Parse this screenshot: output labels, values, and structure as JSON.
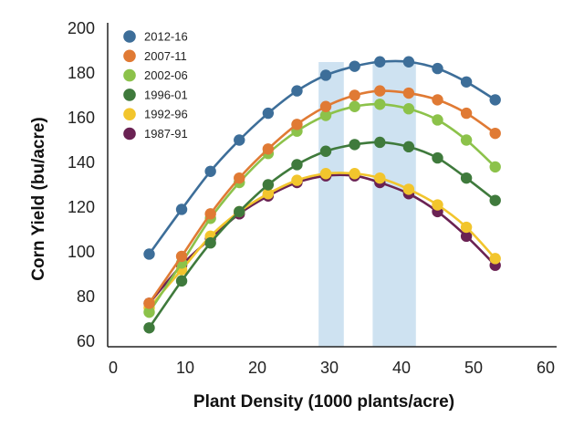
{
  "chart_data": {
    "type": "line",
    "title": "",
    "xlabel": "Plant Density (1000 plants/acre)",
    "ylabel": "Corn Yield (bu/acre)",
    "xlim": [
      0,
      60
    ],
    "ylim": [
      60,
      200
    ],
    "xticks": [
      0,
      10,
      20,
      30,
      40,
      50,
      60
    ],
    "yticks": [
      60,
      80,
      100,
      120,
      140,
      160,
      180,
      200
    ],
    "grid": false,
    "legend_position": "top-left",
    "highlight_bands": [
      {
        "from": 28.5,
        "to": 32,
        "color": "#c9dff0"
      },
      {
        "from": 36,
        "to": 42,
        "color": "#c9dff0"
      }
    ],
    "series": [
      {
        "name": "2012-16",
        "color": "#3d6e99",
        "x": [
          5,
          9.5,
          13.5,
          17.5,
          21.5,
          25.5,
          29.5,
          33.5,
          37,
          41,
          45,
          49,
          53
        ],
        "y": [
          99,
          119,
          136,
          150,
          162,
          172,
          179,
          183,
          185,
          185,
          182,
          176,
          168
        ]
      },
      {
        "name": "2007-11",
        "color": "#e07a34",
        "x": [
          5,
          9.5,
          13.5,
          17.5,
          21.5,
          25.5,
          29.5,
          33.5,
          37,
          41,
          45,
          49,
          53
        ],
        "y": [
          77,
          98,
          117,
          133,
          146,
          157,
          165,
          170,
          172,
          171,
          168,
          162,
          153
        ]
      },
      {
        "name": "2002-06",
        "color": "#8cc24a",
        "x": [
          5,
          9.5,
          13.5,
          17.5,
          21.5,
          25.5,
          29.5,
          33.5,
          37,
          41,
          45,
          49,
          53
        ],
        "y": [
          73,
          95,
          115,
          131,
          144,
          154,
          161,
          165,
          166,
          164,
          159,
          150,
          138
        ]
      },
      {
        "name": "1996-01",
        "color": "#3f7a3c",
        "x": [
          5,
          9.5,
          13.5,
          17.5,
          21.5,
          25.5,
          29.5,
          33.5,
          37,
          41,
          45,
          49,
          53
        ],
        "y": [
          66,
          87,
          104,
          118,
          130,
          139,
          145,
          148,
          149,
          147,
          142,
          133,
          123
        ]
      },
      {
        "name": "1992-96",
        "color": "#f2c52d",
        "x": [
          5,
          9.5,
          13.5,
          17.5,
          21.5,
          25.5,
          29.5,
          33.5,
          37,
          41,
          45,
          49,
          53
        ],
        "y": [
          75,
          92,
          107,
          118,
          126,
          132,
          135,
          135,
          133,
          128,
          121,
          111,
          97
        ]
      },
      {
        "name": "1987-91",
        "color": "#6a2253",
        "x": [
          5,
          9.5,
          13.5,
          17.5,
          21.5,
          25.5,
          29.5,
          33.5,
          37,
          41,
          45,
          49,
          53
        ],
        "y": [
          77,
          94,
          106,
          117,
          125,
          131,
          134,
          134,
          131,
          126,
          118,
          107,
          94
        ]
      }
    ]
  }
}
